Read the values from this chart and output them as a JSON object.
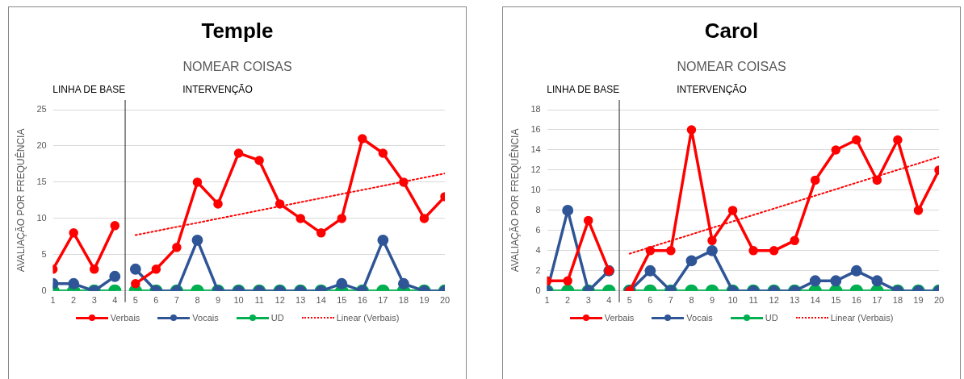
{
  "chart_data": [
    {
      "type": "line",
      "title": "Temple",
      "subtitle": "NOMEAR COISAS",
      "ylabel": "AVALIAÇÃO POR FREQUÊNCIA",
      "annotations": [
        "LINHA DE BASE",
        "INTERVENÇÃO"
      ],
      "x": [
        1,
        2,
        3,
        4,
        4.5,
        5,
        6,
        7,
        8,
        9,
        10,
        11,
        12,
        13,
        14,
        15,
        16,
        17,
        18,
        19,
        20
      ],
      "series": [
        {
          "name": "Verbais",
          "color": "#ff0000",
          "values": [
            3,
            8,
            3,
            9,
            null,
            1,
            3,
            6,
            15,
            12,
            19,
            18,
            12,
            10,
            8,
            10,
            21,
            19,
            15,
            10,
            13
          ]
        },
        {
          "name": "Vocais",
          "color": "#2f5597",
          "values": [
            1,
            1,
            0,
            2,
            null,
            3,
            0,
            0,
            7,
            0,
            0,
            0,
            0,
            0,
            0,
            1,
            0,
            7,
            1,
            0,
            0
          ]
        },
        {
          "name": "UD",
          "color": "#00b050",
          "values": [
            0,
            0,
            0,
            0,
            null,
            0,
            0,
            0,
            0,
            0,
            0,
            0,
            0,
            0,
            0,
            0,
            0,
            0,
            0,
            0,
            0
          ]
        },
        {
          "name": "Linear (Verbais)",
          "type": "line",
          "color": "#ff0000",
          "line_style": "dotted",
          "marker": "none",
          "values": [
            null,
            null,
            null,
            null,
            null,
            7.7,
            null,
            null,
            null,
            null,
            null,
            null,
            null,
            null,
            null,
            null,
            null,
            null,
            null,
            null,
            16.2
          ]
        }
      ],
      "xlim": [
        1,
        20
      ],
      "xticks": [
        1,
        2,
        3,
        4,
        5,
        6,
        7,
        8,
        9,
        10,
        11,
        12,
        13,
        14,
        15,
        16,
        17,
        18,
        19,
        20
      ],
      "ylim": [
        0,
        25
      ],
      "yticks": [
        0,
        5,
        10,
        15,
        20,
        25
      ],
      "ref_lines": [
        {
          "axis": "x",
          "value": 4.5,
          "color": "#222222"
        }
      ],
      "grid": "y",
      "legend": "bottom",
      "marker": "circle"
    },
    {
      "type": "line",
      "title": "Carol",
      "subtitle": "NOMEAR COISAS",
      "ylabel": "AVALIAÇÃO POR FREQUÊNCIA",
      "annotations": [
        "LINHA DE BASE",
        "INTERVENÇÃO"
      ],
      "x": [
        1,
        2,
        3,
        4,
        4.5,
        5,
        6,
        7,
        8,
        9,
        10,
        11,
        12,
        13,
        14,
        15,
        16,
        17,
        18,
        19,
        20
      ],
      "series": [
        {
          "name": "Verbais",
          "color": "#ff0000",
          "values": [
            1,
            1,
            7,
            2,
            null,
            0,
            4,
            4,
            16,
            5,
            8,
            4,
            4,
            5,
            11,
            14,
            15,
            11,
            15,
            8,
            12
          ]
        },
        {
          "name": "Vocais",
          "color": "#2f5597",
          "values": [
            0,
            8,
            0,
            2,
            null,
            0,
            2,
            0,
            3,
            4,
            0,
            0,
            0,
            0,
            1,
            1,
            2,
            1,
            0,
            0,
            0
          ]
        },
        {
          "name": "UD",
          "color": "#00b050",
          "values": [
            0,
            0,
            0,
            0,
            null,
            0,
            0,
            0,
            0,
            0,
            0,
            0,
            0,
            0,
            0,
            0,
            0,
            0,
            0,
            0,
            0
          ]
        },
        {
          "name": "Linear (Verbais)",
          "type": "line",
          "color": "#ff0000",
          "line_style": "dotted",
          "marker": "none",
          "values": [
            null,
            null,
            null,
            null,
            null,
            3.7,
            null,
            null,
            null,
            null,
            null,
            null,
            null,
            null,
            null,
            null,
            null,
            null,
            null,
            null,
            13.3
          ]
        }
      ],
      "xlim": [
        1,
        20
      ],
      "xticks": [
        1,
        2,
        3,
        4,
        5,
        6,
        7,
        8,
        9,
        10,
        11,
        12,
        13,
        14,
        15,
        16,
        17,
        18,
        19,
        20
      ],
      "ylim": [
        0,
        18
      ],
      "yticks": [
        0,
        2,
        4,
        6,
        8,
        10,
        12,
        14,
        16,
        18
      ],
      "ref_lines": [
        {
          "axis": "x",
          "value": 4.5,
          "color": "#222222"
        }
      ],
      "grid": "y",
      "legend": "bottom",
      "marker": "circle"
    }
  ]
}
